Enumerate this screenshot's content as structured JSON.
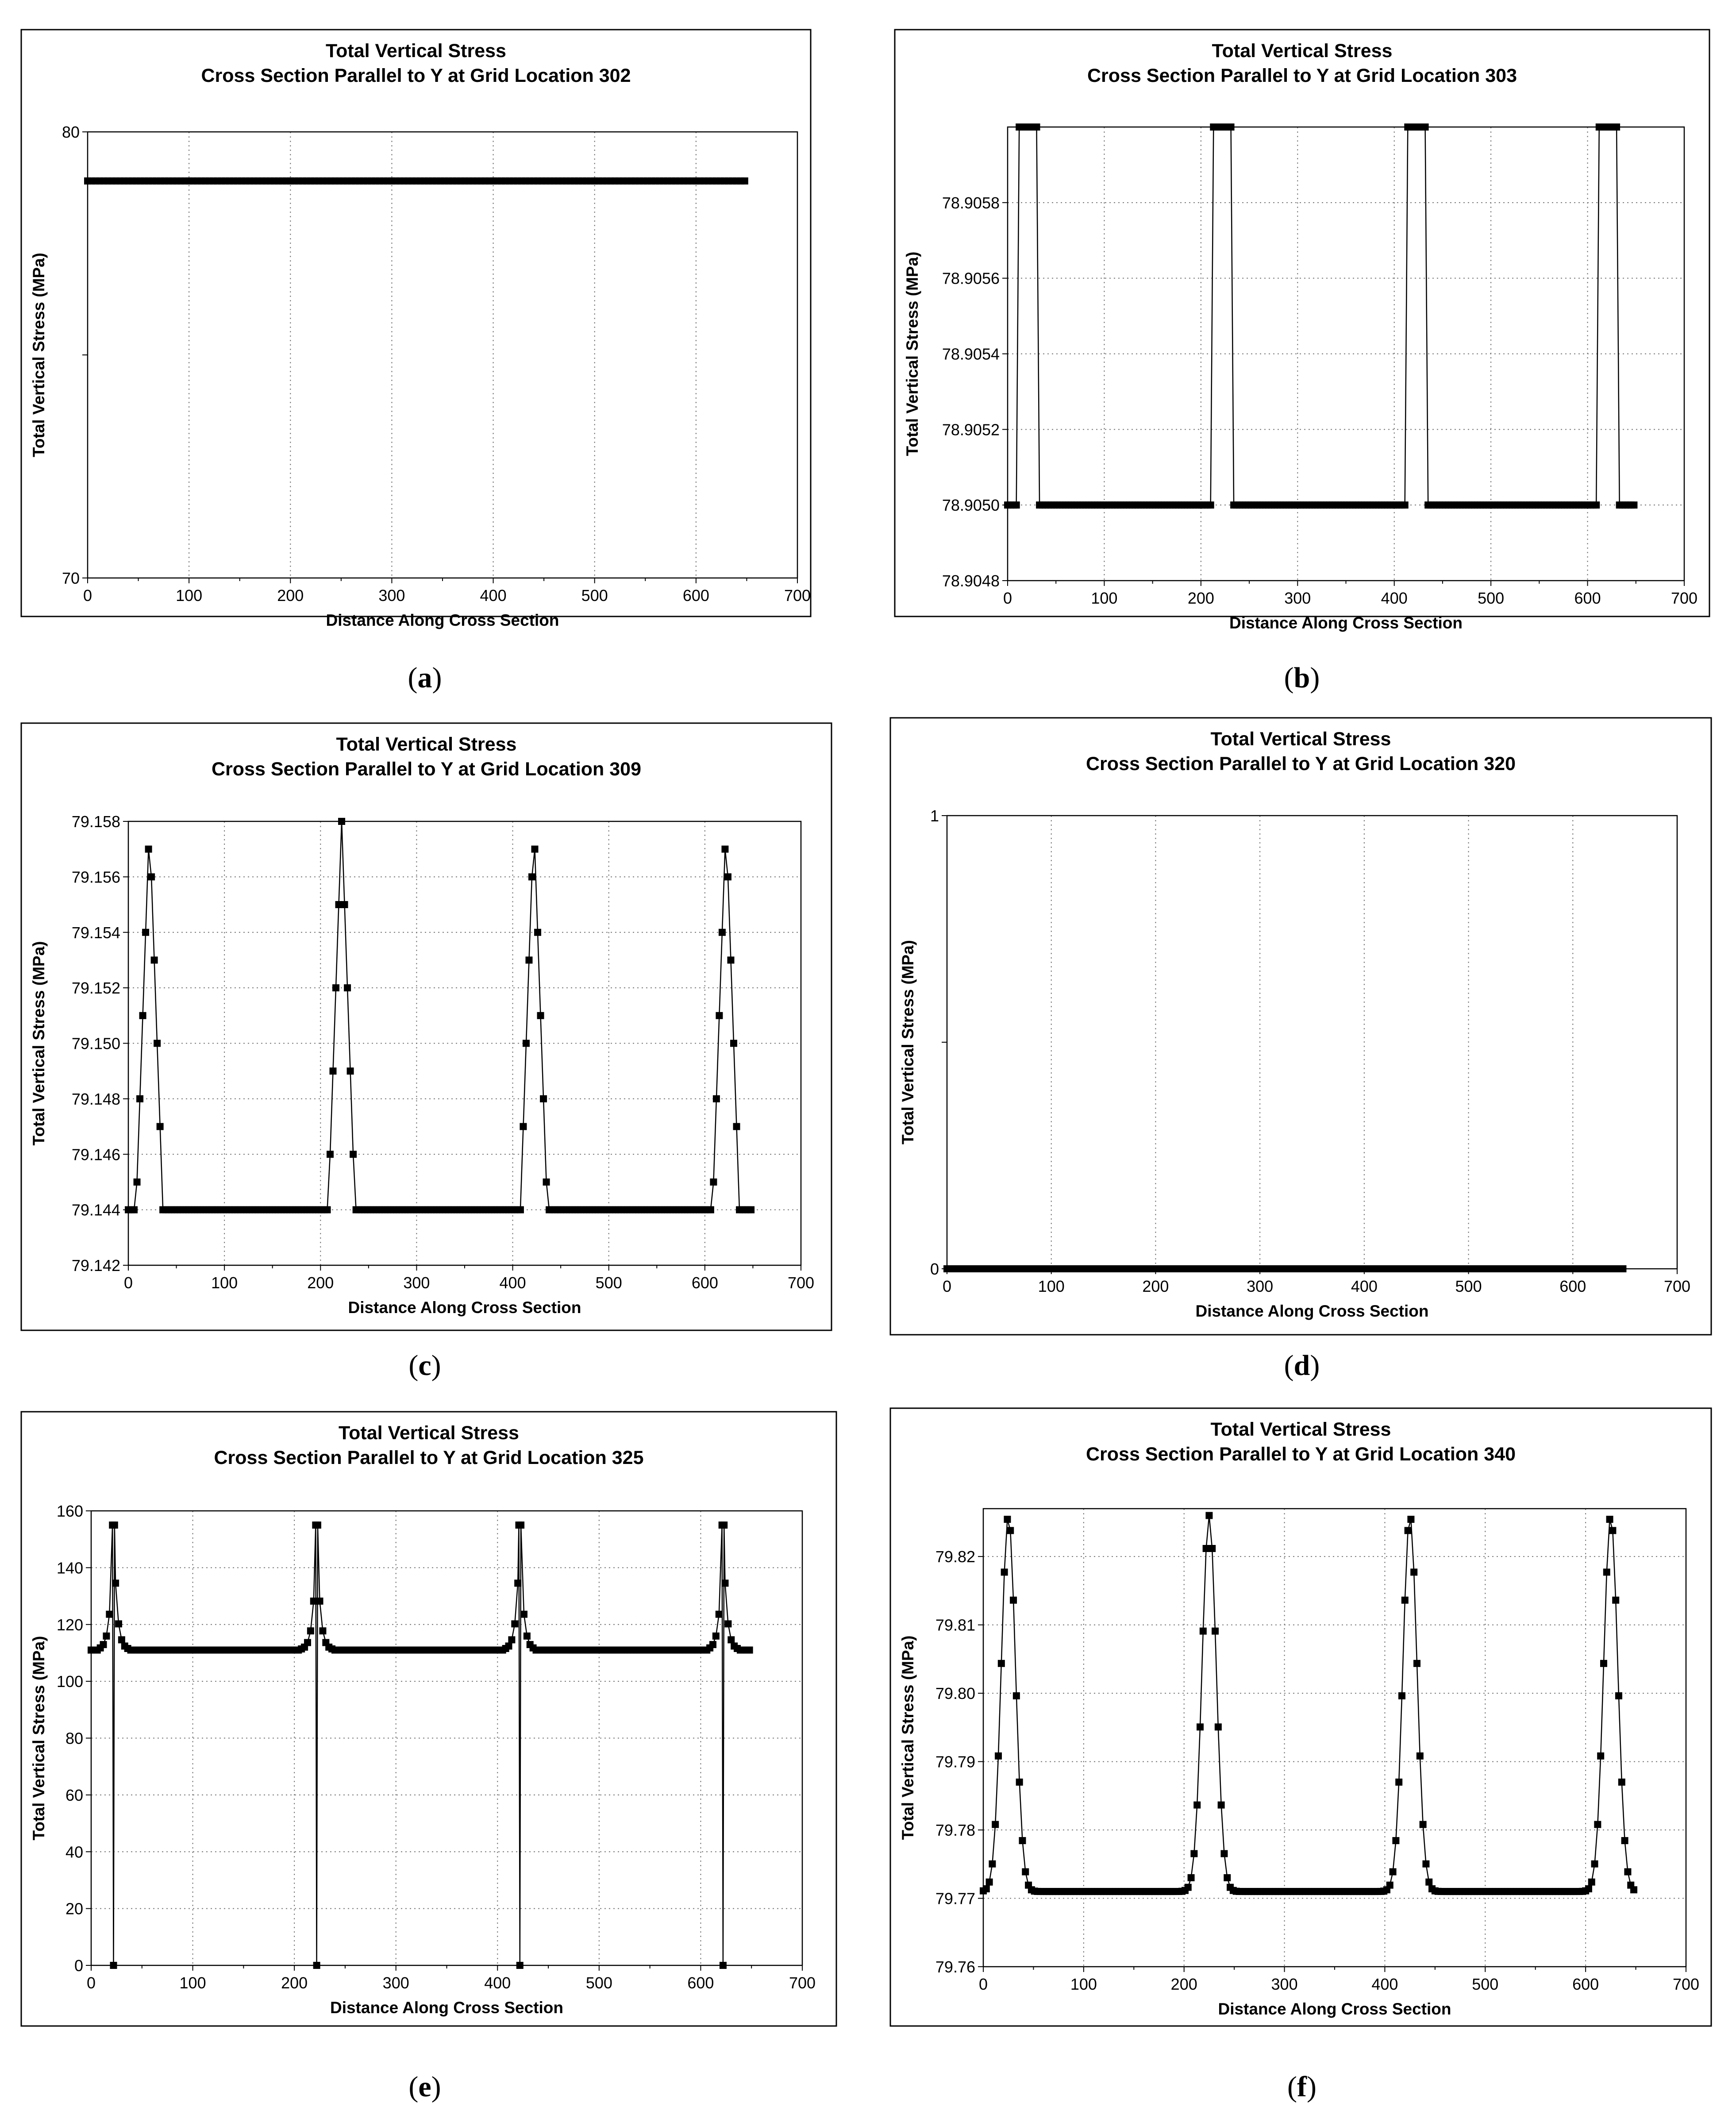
{
  "chart_data": [
    {
      "id": "a",
      "type": "line",
      "caption": "a",
      "title": "Total Vertical Stress",
      "subtitle": "Cross Section Parallel to Y at Grid Location 302",
      "xlabel": "Distance Along Cross Section",
      "ylabel": "Total Vertical Stress (MPa)",
      "xlim": [
        0,
        700
      ],
      "ylim": [
        70,
        80
      ],
      "xticks": [
        "0",
        "100",
        "200",
        "300",
        "400",
        "500",
        "600",
        "700"
      ],
      "yticks": [
        {
          "v": 70,
          "label": "70"
        },
        {
          "v": 75,
          "label": ""
        },
        {
          "v": 80,
          "label": "80"
        }
      ],
      "grid": true,
      "series": [
        {
          "name": "Total Vertical Stress",
          "generator": "flat",
          "value": 78.9,
          "x_start": 0,
          "x_end": 650
        }
      ]
    },
    {
      "id": "b",
      "type": "line",
      "caption": "b",
      "title": "Total Vertical Stress",
      "subtitle": "Cross Section Parallel to Y at Grid Location 303",
      "xlabel": "Distance Along Cross Section",
      "ylabel": "Total Vertical Stress (MPa)",
      "xlim": [
        0,
        700
      ],
      "ylim": [
        78.9048,
        78.906
      ],
      "xticks": [
        "0",
        "100",
        "200",
        "300",
        "400",
        "500",
        "600",
        "700"
      ],
      "yticks": [
        {
          "v": 78.9048,
          "label": "78.9048"
        },
        {
          "v": 78.905,
          "label": "78.9050"
        },
        {
          "v": 78.9052,
          "label": "78.9052"
        },
        {
          "v": 78.9054,
          "label": "78.9054"
        },
        {
          "v": 78.9056,
          "label": "78.9056"
        },
        {
          "v": 78.9058,
          "label": "78.9058"
        }
      ],
      "grid": true,
      "series": [
        {
          "name": "Total Vertical Stress",
          "generator": "step",
          "base": 78.905,
          "peak": 78.906,
          "centers": [
            22,
            222,
            422,
            622
          ],
          "half_width": 10,
          "x_start": 0,
          "x_end": 650
        }
      ]
    },
    {
      "id": "c",
      "type": "line",
      "caption": "c",
      "title": "Total Vertical Stress",
      "subtitle": "Cross Section Parallel to Y at Grid Location 309",
      "xlabel": "Distance Along Cross Section",
      "ylabel": "Total Vertical Stress (MPa)",
      "xlim": [
        0,
        700
      ],
      "ylim": [
        79.142,
        79.158
      ],
      "xticks": [
        "0",
        "100",
        "200",
        "300",
        "400",
        "500",
        "600",
        "700"
      ],
      "yticks": [
        {
          "v": 79.142,
          "label": "79.142"
        },
        {
          "v": 79.144,
          "label": "79.144"
        },
        {
          "v": 79.146,
          "label": "79.146"
        },
        {
          "v": 79.148,
          "label": "79.148"
        },
        {
          "v": 79.15,
          "label": "79.150"
        },
        {
          "v": 79.152,
          "label": "79.152"
        },
        {
          "v": 79.154,
          "label": "79.154"
        },
        {
          "v": 79.156,
          "label": "79.156"
        },
        {
          "v": 79.158,
          "label": "79.158"
        }
      ],
      "grid": true,
      "series": [
        {
          "name": "Total Vertical Stress",
          "generator": "triangle",
          "base": 79.144,
          "peak": 79.158,
          "centers": [
            22,
            222,
            422,
            622
          ],
          "half_width": 14,
          "x_start": 0,
          "x_end": 650
        }
      ]
    },
    {
      "id": "d",
      "type": "line",
      "caption": "d",
      "title": "Total Vertical Stress",
      "subtitle": "Cross Section Parallel to Y at Grid Location 320",
      "xlabel": "Distance Along Cross Section",
      "ylabel": "Total Vertical Stress (MPa)",
      "xlim": [
        0,
        700
      ],
      "ylim": [
        0,
        1
      ],
      "xticks": [
        "0",
        "100",
        "200",
        "300",
        "400",
        "500",
        "600",
        "700"
      ],
      "yticks": [
        {
          "v": 0,
          "label": "0"
        },
        {
          "v": 0.5,
          "label": ""
        },
        {
          "v": 1,
          "label": "1"
        }
      ],
      "grid": true,
      "series": [
        {
          "name": "Total Vertical Stress",
          "generator": "flat",
          "value": 0,
          "x_start": 0,
          "x_end": 650
        }
      ]
    },
    {
      "id": "e",
      "type": "line",
      "caption": "e",
      "title": "Total Vertical Stress",
      "subtitle": "Cross Section Parallel to Y at Grid Location 325",
      "xlabel": "Distance Along Cross Section",
      "ylabel": "Total Vertical Stress (MPa)",
      "xlim": [
        0,
        700
      ],
      "ylim": [
        0,
        160
      ],
      "xticks": [
        "0",
        "100",
        "200",
        "300",
        "400",
        "500",
        "600",
        "700"
      ],
      "yticks": [
        {
          "v": 0,
          "label": "0"
        },
        {
          "v": 20,
          "label": "20"
        },
        {
          "v": 40,
          "label": "40"
        },
        {
          "v": 60,
          "label": "60"
        },
        {
          "v": 80,
          "label": "80"
        },
        {
          "v": 100,
          "label": "100"
        },
        {
          "v": 120,
          "label": "120"
        },
        {
          "v": 140,
          "label": "140"
        },
        {
          "v": 160,
          "label": "160"
        }
      ],
      "grid": true,
      "series": [
        {
          "name": "Total Vertical Stress",
          "generator": "spike",
          "base": 111,
          "peak": 155,
          "dip": 0,
          "centers": [
            22,
            222,
            422,
            622
          ],
          "x_start": 0,
          "x_end": 650
        }
      ]
    },
    {
      "id": "f",
      "type": "line",
      "caption": "f",
      "title": "Total Vertical Stress",
      "subtitle": "Cross Section Parallel to Y at Grid Location 340",
      "xlabel": "Distance Along Cross Section",
      "ylabel": "Total Vertical Stress (MPa)",
      "xlim": [
        0,
        700
      ],
      "ylim": [
        79.76,
        79.827
      ],
      "xticks": [
        "0",
        "100",
        "200",
        "300",
        "400",
        "500",
        "600",
        "700"
      ],
      "yticks": [
        {
          "v": 79.76,
          "label": "79.76"
        },
        {
          "v": 79.77,
          "label": "79.77"
        },
        {
          "v": 79.78,
          "label": "79.78"
        },
        {
          "v": 79.79,
          "label": "79.79"
        },
        {
          "v": 79.8,
          "label": "79.80"
        },
        {
          "v": 79.81,
          "label": "79.81"
        },
        {
          "v": 79.82,
          "label": "79.82"
        }
      ],
      "grid": true,
      "series": [
        {
          "name": "Total Vertical Stress",
          "generator": "gauss",
          "base": 79.771,
          "peak": 79.826,
          "centers": [
            25,
            225,
            425,
            625
          ],
          "sigma": 7,
          "x_start": 0,
          "x_end": 650
        }
      ]
    }
  ]
}
